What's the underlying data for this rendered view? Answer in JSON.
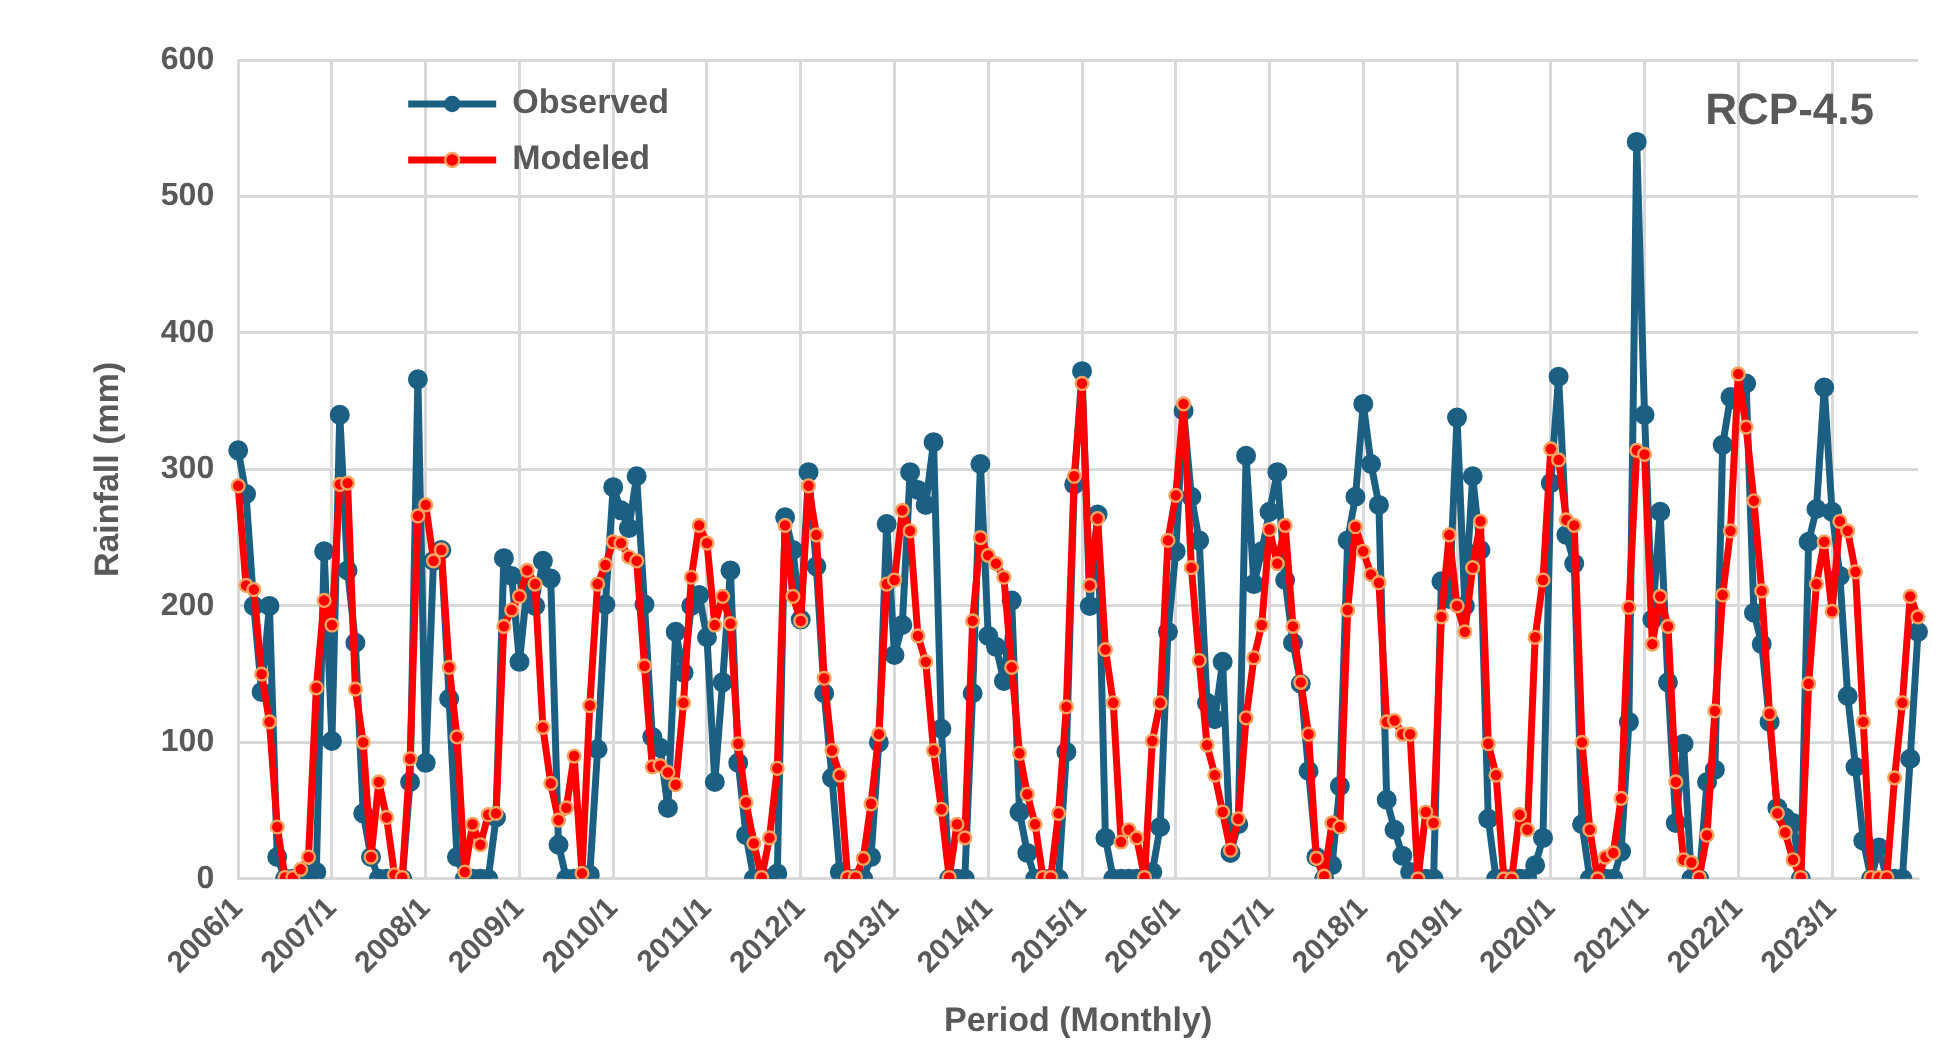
{
  "chart_data": {
    "type": "line",
    "xlabel": "Period (Monthly)",
    "ylabel": "Rainfall (mm)",
    "annotations": [
      "RCP-4.5"
    ],
    "categories": [
      "2006/1",
      null,
      null,
      null,
      null,
      null,
      null,
      null,
      null,
      null,
      null,
      null,
      "2007/1",
      null,
      null,
      null,
      null,
      null,
      null,
      null,
      null,
      null,
      null,
      null,
      "2008/1",
      null,
      null,
      null,
      null,
      null,
      null,
      null,
      null,
      null,
      null,
      null,
      "2009/1",
      null,
      null,
      null,
      null,
      null,
      null,
      null,
      null,
      null,
      null,
      null,
      "2010/1",
      null,
      null,
      null,
      null,
      null,
      null,
      null,
      null,
      null,
      null,
      null,
      "2011/1",
      null,
      null,
      null,
      null,
      null,
      null,
      null,
      null,
      null,
      null,
      null,
      "2012/1",
      null,
      null,
      null,
      null,
      null,
      null,
      null,
      null,
      null,
      null,
      null,
      "2013/1",
      null,
      null,
      null,
      null,
      null,
      null,
      null,
      null,
      null,
      null,
      null,
      "2014/1",
      null,
      null,
      null,
      null,
      null,
      null,
      null,
      null,
      null,
      null,
      null,
      "2015/1",
      null,
      null,
      null,
      null,
      null,
      null,
      null,
      null,
      null,
      null,
      null,
      "2016/1",
      null,
      null,
      null,
      null,
      null,
      null,
      null,
      null,
      null,
      null,
      null,
      "2017/1",
      null,
      null,
      null,
      null,
      null,
      null,
      null,
      null,
      null,
      null,
      null,
      "2018/1",
      null,
      null,
      null,
      null,
      null,
      null,
      null,
      null,
      null,
      null,
      null,
      "2019/1",
      null,
      null,
      null,
      null,
      null,
      null,
      null,
      null,
      null,
      null,
      null,
      "2020/1",
      null,
      null,
      null,
      null,
      null,
      null,
      null,
      null,
      null,
      null,
      null,
      "2021/1",
      null,
      null,
      null,
      null,
      null,
      null,
      null,
      null,
      null,
      null,
      null,
      "2022/1",
      null,
      null,
      null,
      null,
      null,
      null,
      null,
      null,
      null,
      null,
      null,
      "2023/1",
      null,
      null,
      null,
      null,
      null,
      null,
      null,
      null,
      null,
      null,
      null
    ],
    "series": [
      {
        "name": "Observed",
        "color": "#1b6083",
        "values": [
          314,
          282,
          200,
          137,
          200,
          16,
          0,
          0,
          0,
          3,
          5,
          240,
          101,
          340,
          226,
          173,
          48,
          16,
          0,
          0,
          0,
          0,
          71,
          366,
          85,
          233,
          241,
          132,
          16,
          0,
          0,
          0,
          0,
          45,
          235,
          222,
          159,
          215,
          200,
          233,
          220,
          25,
          0,
          0,
          0,
          3,
          95,
          201,
          287,
          270,
          257,
          295,
          201,
          104,
          96,
          52,
          181,
          151,
          200,
          208,
          177,
          71,
          144,
          226,
          85,
          32,
          0,
          0,
          0,
          4,
          265,
          241,
          190,
          298,
          229,
          136,
          74,
          5,
          0,
          0,
          0,
          16,
          100,
          260,
          164,
          186,
          298,
          285,
          274,
          320,
          110,
          0,
          0,
          0,
          136,
          304,
          178,
          170,
          145,
          204,
          49,
          19,
          0,
          0,
          0,
          0,
          93,
          289,
          372,
          200,
          267,
          30,
          0,
          0,
          0,
          0,
          0,
          5,
          38,
          181,
          240,
          343,
          280,
          248,
          129,
          117,
          159,
          19,
          40,
          310,
          216,
          240,
          269,
          298,
          219,
          173,
          143,
          79,
          16,
          0,
          10,
          68,
          248,
          280,
          348,
          304,
          274,
          58,
          36,
          17,
          5,
          0,
          0,
          0,
          218,
          205,
          338,
          200,
          295,
          241,
          44,
          0,
          0,
          0,
          0,
          0,
          10,
          30,
          290,
          368,
          252,
          231,
          40,
          0,
          0,
          0,
          0,
          20,
          115,
          540,
          340,
          190,
          269,
          144,
          41,
          99,
          0,
          0,
          71,
          80,
          318,
          353,
          350,
          363,
          195,
          172,
          115,
          52,
          45,
          41,
          0,
          247,
          271,
          360,
          269,
          222,
          134,
          82,
          28,
          0,
          23,
          0,
          0,
          0,
          88,
          181
        ]
      },
      {
        "name": "Modeled",
        "color": "#ff0000",
        "values": [
          288,
          215,
          212,
          150,
          115,
          38,
          1,
          1,
          7,
          16,
          140,
          204,
          186,
          289,
          290,
          139,
          100,
          16,
          71,
          45,
          3,
          1,
          88,
          266,
          274,
          233,
          241,
          155,
          104,
          5,
          40,
          25,
          47,
          48,
          185,
          197,
          207,
          226,
          216,
          111,
          70,
          43,
          52,
          90,
          4,
          127,
          216,
          230,
          247,
          246,
          236,
          233,
          156,
          82,
          83,
          78,
          69,
          129,
          221,
          259,
          246,
          186,
          207,
          187,
          99,
          56,
          26,
          1,
          30,
          81,
          259,
          207,
          189,
          288,
          252,
          147,
          94,
          76,
          1,
          1,
          15,
          55,
          106,
          216,
          219,
          270,
          255,
          178,
          159,
          94,
          51,
          1,
          40,
          30,
          189,
          250,
          237,
          231,
          221,
          155,
          92,
          62,
          40,
          1,
          1,
          48,
          126,
          295,
          363,
          215,
          264,
          168,
          129,
          27,
          36,
          30,
          1,
          101,
          129,
          248,
          281,
          348,
          228,
          160,
          98,
          76,
          49,
          21,
          44,
          118,
          162,
          186,
          256,
          231,
          259,
          185,
          144,
          106,
          15,
          2,
          41,
          38,
          197,
          258,
          240,
          223,
          217,
          115,
          116,
          106,
          106,
          0,
          49,
          41,
          192,
          252,
          200,
          181,
          228,
          262,
          99,
          76,
          0,
          0,
          47,
          36,
          177,
          219,
          315,
          307,
          263,
          259,
          100,
          36,
          0,
          16,
          19,
          59,
          199,
          314,
          311,
          172,
          207,
          185,
          71,
          14,
          12,
          1,
          32,
          123,
          208,
          255,
          370,
          331,
          277,
          211,
          121,
          48,
          34,
          14,
          1,
          143,
          216,
          247,
          196,
          262,
          255,
          225,
          115,
          1,
          1,
          1,
          74,
          129,
          207,
          192
        ]
      }
    ],
    "ylim": [
      0,
      600
    ],
    "yticks": [
      0,
      100,
      200,
      300,
      400,
      500,
      600
    ],
    "grid": true,
    "legend": "top left",
    "marker": "circle",
    "line_style": "solid"
  }
}
